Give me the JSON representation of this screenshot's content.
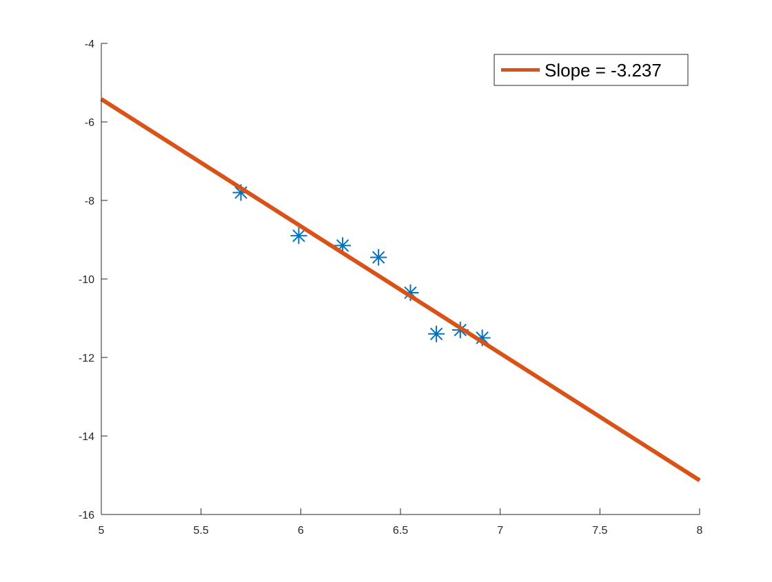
{
  "colors": {
    "background": "#ffffff",
    "axes": "#262626",
    "data_series": "#0072BD",
    "fit_series": "#D95319",
    "legend_border": "#262626"
  },
  "chart_data": {
    "type": "scatter",
    "title": "",
    "xlabel": "",
    "ylabel": "",
    "xlim": [
      5,
      8
    ],
    "ylim": [
      -16,
      -4
    ],
    "x_ticks": [
      "5",
      "5.5",
      "6",
      "6.5",
      "7",
      "7.5",
      "8"
    ],
    "y_ticks": [
      "-4",
      "-6",
      "-8",
      "-10",
      "-12",
      "-14",
      "-16"
    ],
    "grid": false,
    "legend_position": "top-right",
    "series": [
      {
        "marker": "asterisk",
        "x": [
          5.7,
          5.99,
          6.21,
          6.39,
          6.55,
          6.68,
          6.8,
          6.91
        ],
        "y": [
          -7.8,
          -8.9,
          -9.15,
          -9.45,
          -10.35,
          -11.4,
          -11.3,
          -11.5
        ]
      },
      {
        "name": "Slope = -3.237",
        "marker": "none",
        "line": "solid",
        "x": [
          5,
          8
        ],
        "y": [
          -5.42,
          -15.13
        ]
      }
    ]
  }
}
